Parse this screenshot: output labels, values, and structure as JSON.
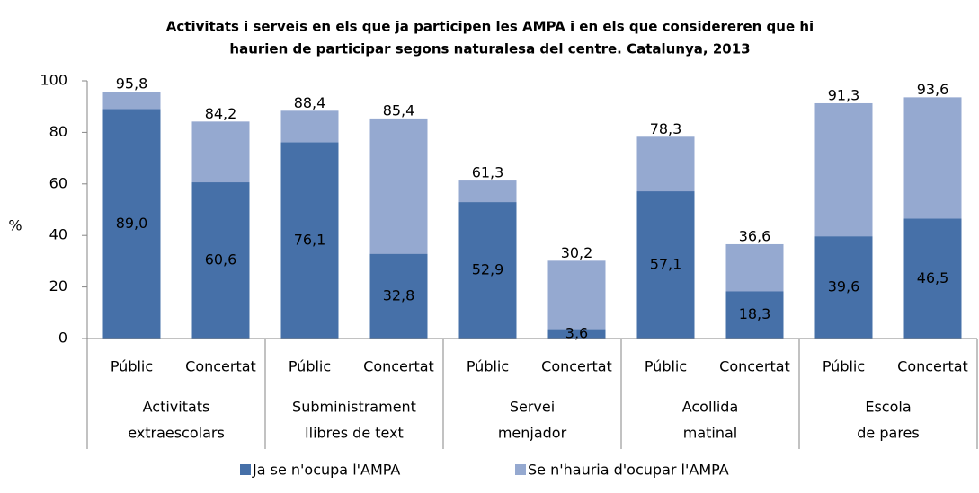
{
  "chart_data": {
    "type": "bar",
    "bar_mode": "overlay",
    "title": [
      "Activitats i serveis  en els que ja participen les AMPA i en els que considereren que hi",
      "haurien de participar segons naturalesa del centre. Catalunya,  2013"
    ],
    "y_label": "%",
    "categories": [
      "Públic",
      "Concertat",
      "Públic",
      "Concertat",
      "Públic",
      "Concertat",
      "Públic",
      "Concertat",
      "Públic",
      "Concertat"
    ],
    "groups": [
      [
        "Activitats",
        "extraescolars"
      ],
      [
        "Subministrament",
        "llibres de text"
      ],
      [
        "Servei",
        "menjador"
      ],
      [
        "Acollida",
        "matinal"
      ],
      [
        "Escola",
        "de pares"
      ]
    ],
    "series": [
      {
        "name": "Se n'hauria d'ocupar l'AMPA",
        "color": "#95a9d0",
        "values": [
          95.8,
          84.2,
          88.4,
          85.4,
          61.3,
          30.2,
          78.3,
          36.6,
          91.3,
          93.6
        ],
        "value_labels": [
          "95,8",
          "84,2",
          "88,4",
          "85,4",
          "61,3",
          "30,2",
          "78,3",
          "36,6",
          "91,3",
          "93,6"
        ]
      },
      {
        "name": "Ja se n'ocupa l'AMPA",
        "color": "#4670a8",
        "values": [
          89.0,
          60.6,
          76.1,
          32.8,
          52.9,
          3.6,
          57.1,
          18.3,
          39.6,
          46.5
        ],
        "value_labels": [
          "89,0",
          "60,6",
          "76,1",
          "32,8",
          "52,9",
          "3,6",
          "57,1",
          "18,3",
          "39,6",
          "46,5"
        ]
      }
    ],
    "legend_order": [
      1,
      0
    ],
    "ylim": [
      0,
      100
    ],
    "yticks": [
      0,
      20,
      40,
      60,
      80,
      100
    ],
    "grid": false
  }
}
